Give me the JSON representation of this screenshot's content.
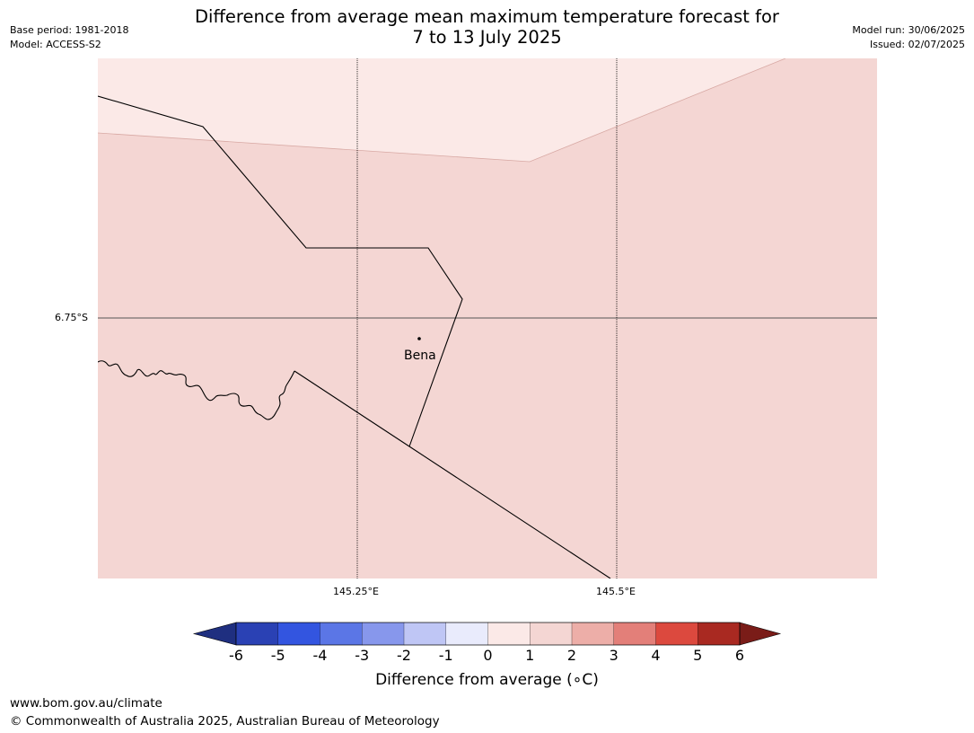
{
  "header": {
    "title_line1": "Difference from average mean maximum temperature forecast for",
    "title_line2": "7 to 13 July 2025",
    "base_period": "Base period: 1981-2018",
    "model": "Model: ACCESS-S2",
    "model_run": "Model run: 30/06/2025",
    "issued": "Issued: 02/07/2025"
  },
  "map": {
    "latitude_label": "6.75°S",
    "longitude_labels": [
      "145.25°E",
      "145.5°E"
    ],
    "town": "Bena",
    "colors": {
      "zone_0_to_1": "#fbe9e7",
      "zone_1_to_2": "#f4d6d3",
      "boundary": "#000000",
      "gridline": "#555555"
    }
  },
  "colorbar": {
    "ticks": [
      "-6",
      "-5",
      "-4",
      "-3",
      "-2",
      "-1",
      "0",
      "1",
      "2",
      "3",
      "4",
      "5",
      "6"
    ],
    "label": "Difference from average (∘C)",
    "colors": {
      "below_min": "#1f2f80",
      "bins": [
        "#2a41b4",
        "#3355e0",
        "#5b76e6",
        "#8797ec",
        "#bfc6f5",
        "#e9ebfc",
        "#fbe9e7",
        "#f4d6d3",
        "#edaea8",
        "#e37f79",
        "#dc493e",
        "#a92921"
      ],
      "above_max": "#7a1c18"
    }
  },
  "footer": {
    "url": "www.bom.gov.au/climate",
    "copyright": "© Commonwealth of Australia 2025, Australian Bureau of Meteorology"
  }
}
